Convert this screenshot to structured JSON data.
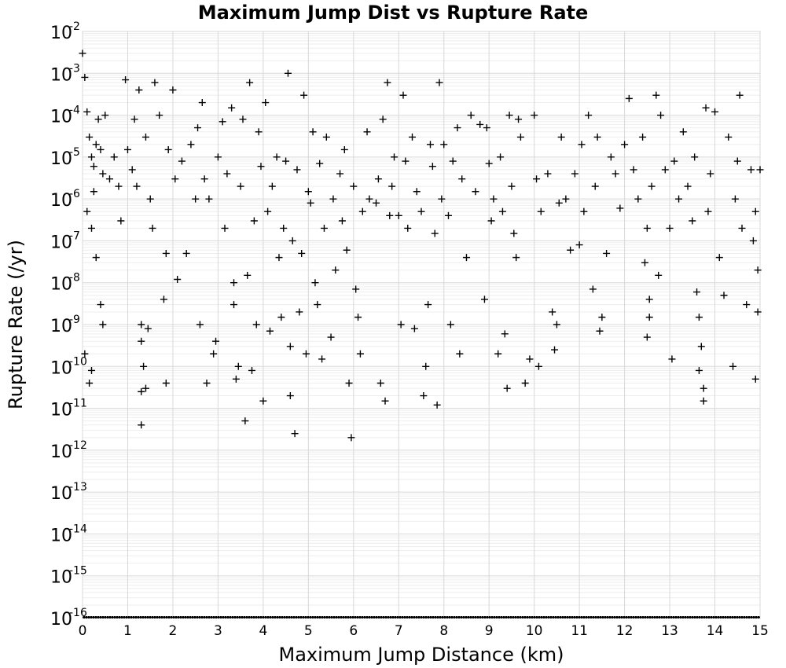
{
  "chart_data": {
    "type": "scatter",
    "title": "Maximum Jump Dist vs Rupture Rate",
    "xlabel": "Maximum Jump Distance (km)",
    "ylabel": "Rupture Rate (/yr)",
    "xlim": [
      0,
      15
    ],
    "ylim": [
      1e-16,
      0.01
    ],
    "yscale": "log",
    "grid": true,
    "marker": "+",
    "marker_color": "#000000",
    "x_ticks": [
      "0",
      "1",
      "2",
      "3",
      "4",
      "5",
      "6",
      "7",
      "8",
      "9",
      "10",
      "11",
      "12",
      "13",
      "14",
      "15"
    ],
    "y_ticks": [
      {
        "base": "10",
        "exp": "-16"
      },
      {
        "base": "10",
        "exp": "-15"
      },
      {
        "base": "10",
        "exp": "-14"
      },
      {
        "base": "10",
        "exp": "-13"
      },
      {
        "base": "10",
        "exp": "-12"
      },
      {
        "base": "10",
        "exp": "-11"
      },
      {
        "base": "10",
        "exp": "-10"
      },
      {
        "base": "10",
        "exp": "-9"
      },
      {
        "base": "10",
        "exp": "-8"
      },
      {
        "base": "10",
        "exp": "-7"
      },
      {
        "base": "10",
        "exp": "-6"
      },
      {
        "base": "10",
        "exp": "-5"
      },
      {
        "base": "10",
        "exp": "-4"
      },
      {
        "base": "10",
        "exp": "-3"
      },
      {
        "base": "10",
        "exp": "-2"
      }
    ],
    "points": [
      [
        0.0,
        0.003
      ],
      [
        0.05,
        0.0008
      ],
      [
        0.1,
        0.00012
      ],
      [
        0.15,
        3e-05
      ],
      [
        0.2,
        1e-05
      ],
      [
        0.25,
        6e-06
      ],
      [
        0.3,
        2e-05
      ],
      [
        0.35,
        8e-05
      ],
      [
        0.4,
        1.5e-05
      ],
      [
        0.45,
        4e-06
      ],
      [
        0.5,
        0.0001
      ],
      [
        0.1,
        5e-07
      ],
      [
        0.2,
        2e-07
      ],
      [
        0.3,
        4e-08
      ],
      [
        0.4,
        3e-09
      ],
      [
        0.45,
        1e-09
      ],
      [
        0.2,
        8e-11
      ],
      [
        0.15,
        4e-11
      ],
      [
        0.05,
        2e-10
      ],
      [
        0.25,
        1.5e-06
      ],
      [
        0.6,
        3e-06
      ],
      [
        0.7,
        1e-05
      ],
      [
        0.8,
        2e-06
      ],
      [
        0.85,
        3e-07
      ],
      [
        0.95,
        0.0007
      ],
      [
        1.0,
        1.5e-05
      ],
      [
        1.1,
        5e-06
      ],
      [
        1.15,
        8e-05
      ],
      [
        1.2,
        2e-06
      ],
      [
        1.25,
        0.0004
      ],
      [
        1.3,
        1e-09
      ],
      [
        1.3,
        4e-10
      ],
      [
        1.35,
        1e-10
      ],
      [
        1.3,
        2.5e-11
      ],
      [
        1.3,
        4e-12
      ],
      [
        1.4,
        3e-11
      ],
      [
        1.45,
        8e-10
      ],
      [
        1.4,
        3e-05
      ],
      [
        1.5,
        1e-06
      ],
      [
        1.55,
        2e-07
      ],
      [
        1.6,
        0.0006
      ],
      [
        1.7,
        0.0001
      ],
      [
        1.8,
        4e-09
      ],
      [
        1.85,
        5e-08
      ],
      [
        1.9,
        1.5e-05
      ],
      [
        2.0,
        0.0004
      ],
      [
        2.05,
        3e-06
      ],
      [
        2.1,
        1.2e-08
      ],
      [
        1.85,
        4e-11
      ],
      [
        2.2,
        8e-06
      ],
      [
        2.3,
        5e-08
      ],
      [
        2.4,
        2e-05
      ],
      [
        2.5,
        1e-06
      ],
      [
        2.55,
        5e-05
      ],
      [
        2.6,
        1e-09
      ],
      [
        2.65,
        0.0002
      ],
      [
        2.7,
        3e-06
      ],
      [
        2.75,
        4e-11
      ],
      [
        2.8,
        1e-06
      ],
      [
        2.9,
        2e-10
      ],
      [
        2.95,
        4e-10
      ],
      [
        3.0,
        1e-05
      ],
      [
        3.1,
        7e-05
      ],
      [
        3.15,
        2e-07
      ],
      [
        3.2,
        4e-06
      ],
      [
        3.3,
        0.00015
      ],
      [
        3.35,
        3e-09
      ],
      [
        3.35,
        1e-08
      ],
      [
        3.4,
        5e-11
      ],
      [
        3.45,
        1e-10
      ],
      [
        3.5,
        2e-06
      ],
      [
        3.55,
        8e-05
      ],
      [
        3.6,
        5e-12
      ],
      [
        3.65,
        1.5e-08
      ],
      [
        3.7,
        0.0006
      ],
      [
        3.75,
        8e-11
      ],
      [
        3.8,
        3e-07
      ],
      [
        3.85,
        1e-09
      ],
      [
        3.9,
        4e-05
      ],
      [
        3.95,
        6e-06
      ],
      [
        4.0,
        1.5e-11
      ],
      [
        4.05,
        0.0002
      ],
      [
        4.1,
        5e-07
      ],
      [
        4.15,
        7e-10
      ],
      [
        4.2,
        2e-06
      ],
      [
        4.3,
        1e-05
      ],
      [
        4.35,
        4e-08
      ],
      [
        4.4,
        1.5e-09
      ],
      [
        4.45,
        2e-07
      ],
      [
        4.5,
        8e-06
      ],
      [
        4.55,
        0.001
      ],
      [
        4.6,
        2e-11
      ],
      [
        4.6,
        3e-10
      ],
      [
        4.65,
        1e-07
      ],
      [
        4.7,
        2.5e-12
      ],
      [
        4.75,
        5e-06
      ],
      [
        4.8,
        2e-09
      ],
      [
        4.85,
        5e-08
      ],
      [
        4.9,
        0.0003
      ],
      [
        4.95,
        2e-10
      ],
      [
        5.0,
        1.5e-06
      ],
      [
        5.05,
        8e-07
      ],
      [
        5.1,
        4e-05
      ],
      [
        5.15,
        1e-08
      ],
      [
        5.2,
        3e-09
      ],
      [
        5.25,
        7e-06
      ],
      [
        5.3,
        1.5e-10
      ],
      [
        5.35,
        2e-07
      ],
      [
        5.4,
        3e-05
      ],
      [
        5.5,
        5e-10
      ],
      [
        5.55,
        1e-06
      ],
      [
        5.6,
        2e-08
      ],
      [
        5.7,
        4e-06
      ],
      [
        5.75,
        3e-07
      ],
      [
        5.8,
        1.5e-05
      ],
      [
        5.85,
        6e-08
      ],
      [
        5.9,
        4e-11
      ],
      [
        5.95,
        2e-12
      ],
      [
        6.0,
        2e-06
      ],
      [
        6.05,
        7e-09
      ],
      [
        6.1,
        1.5e-09
      ],
      [
        6.15,
        2e-10
      ],
      [
        6.2,
        5e-07
      ],
      [
        6.3,
        4e-05
      ],
      [
        6.35,
        1e-06
      ],
      [
        6.5,
        8e-07
      ],
      [
        6.55,
        3e-06
      ],
      [
        6.6,
        4e-11
      ],
      [
        6.65,
        8e-05
      ],
      [
        6.7,
        1.5e-11
      ],
      [
        6.75,
        0.0006
      ],
      [
        6.8,
        4e-07
      ],
      [
        6.85,
        2e-06
      ],
      [
        6.9,
        1e-05
      ],
      [
        7.0,
        4e-07
      ],
      [
        7.05,
        1e-09
      ],
      [
        7.1,
        0.0003
      ],
      [
        7.15,
        8e-06
      ],
      [
        7.2,
        2e-07
      ],
      [
        7.3,
        3e-05
      ],
      [
        7.35,
        8e-10
      ],
      [
        7.4,
        1.5e-06
      ],
      [
        7.5,
        5e-07
      ],
      [
        7.55,
        2e-11
      ],
      [
        7.6,
        1e-10
      ],
      [
        7.65,
        3e-09
      ],
      [
        7.7,
        2e-05
      ],
      [
        7.75,
        6e-06
      ],
      [
        7.8,
        1.5e-07
      ],
      [
        7.85,
        1.2e-11
      ],
      [
        7.9,
        0.0006
      ],
      [
        7.95,
        1e-06
      ],
      [
        8.0,
        2e-05
      ],
      [
        8.1,
        4e-07
      ],
      [
        8.15,
        1e-09
      ],
      [
        8.2,
        8e-06
      ],
      [
        8.3,
        5e-05
      ],
      [
        8.35,
        2e-10
      ],
      [
        8.4,
        3e-06
      ],
      [
        8.5,
        4e-08
      ],
      [
        8.6,
        0.0001
      ],
      [
        8.7,
        1.5e-06
      ],
      [
        8.8,
        6e-05
      ],
      [
        8.9,
        4e-09
      ],
      [
        8.95,
        5e-05
      ],
      [
        9.0,
        7e-06
      ],
      [
        9.05,
        3e-07
      ],
      [
        9.1,
        1e-06
      ],
      [
        9.2,
        2e-10
      ],
      [
        9.25,
        1e-05
      ],
      [
        9.3,
        5e-07
      ],
      [
        9.35,
        6e-10
      ],
      [
        9.4,
        3e-11
      ],
      [
        9.45,
        0.0001
      ],
      [
        9.5,
        2e-06
      ],
      [
        9.55,
        1.5e-07
      ],
      [
        9.6,
        4e-08
      ],
      [
        9.65,
        8e-05
      ],
      [
        9.7,
        3e-05
      ],
      [
        9.8,
        4e-11
      ],
      [
        9.9,
        1.5e-10
      ],
      [
        10.0,
        0.0001
      ],
      [
        10.05,
        3e-06
      ],
      [
        10.1,
        1e-10
      ],
      [
        10.15,
        5e-07
      ],
      [
        10.3,
        4e-06
      ],
      [
        10.4,
        2e-09
      ],
      [
        10.45,
        2.5e-10
      ],
      [
        10.5,
        1e-09
      ],
      [
        10.55,
        8e-07
      ],
      [
        10.6,
        3e-05
      ],
      [
        10.7,
        1e-06
      ],
      [
        10.8,
        6e-08
      ],
      [
        10.9,
        4e-06
      ],
      [
        11.0,
        8e-08
      ],
      [
        11.05,
        2e-05
      ],
      [
        11.1,
        5e-07
      ],
      [
        11.2,
        0.0001
      ],
      [
        11.3,
        7e-09
      ],
      [
        11.35,
        2e-06
      ],
      [
        11.4,
        3e-05
      ],
      [
        11.45,
        7e-10
      ],
      [
        11.5,
        1.5e-09
      ],
      [
        11.6,
        5e-08
      ],
      [
        11.7,
        1e-05
      ],
      [
        11.8,
        4e-06
      ],
      [
        11.9,
        6e-07
      ],
      [
        12.0,
        2e-05
      ],
      [
        12.1,
        0.00025
      ],
      [
        12.2,
        5e-06
      ],
      [
        12.3,
        1e-06
      ],
      [
        12.4,
        3e-05
      ],
      [
        12.45,
        3e-08
      ],
      [
        12.5,
        2e-07
      ],
      [
        12.55,
        4e-09
      ],
      [
        12.5,
        5e-10
      ],
      [
        12.55,
        1.5e-09
      ],
      [
        12.6,
        2e-06
      ],
      [
        12.7,
        0.0003
      ],
      [
        12.75,
        1.5e-08
      ],
      [
        12.8,
        0.0001
      ],
      [
        12.9,
        5e-06
      ],
      [
        13.0,
        2e-07
      ],
      [
        13.05,
        1.5e-10
      ],
      [
        13.1,
        8e-06
      ],
      [
        13.2,
        1e-06
      ],
      [
        13.3,
        4e-05
      ],
      [
        13.4,
        2e-06
      ],
      [
        13.5,
        3e-07
      ],
      [
        13.55,
        1e-05
      ],
      [
        13.6,
        6e-09
      ],
      [
        13.65,
        1.5e-09
      ],
      [
        13.7,
        3e-10
      ],
      [
        13.65,
        8e-11
      ],
      [
        13.75,
        1.5e-11
      ],
      [
        13.75,
        3e-11
      ],
      [
        13.8,
        0.00015
      ],
      [
        13.85,
        5e-07
      ],
      [
        13.9,
        4e-06
      ],
      [
        14.0,
        0.00012
      ],
      [
        14.1,
        4e-08
      ],
      [
        14.2,
        5e-09
      ],
      [
        14.3,
        3e-05
      ],
      [
        14.4,
        1e-10
      ],
      [
        14.45,
        1e-06
      ],
      [
        14.5,
        8e-06
      ],
      [
        14.55,
        0.0003
      ],
      [
        14.6,
        2e-07
      ],
      [
        14.7,
        3e-09
      ],
      [
        14.8,
        5e-06
      ],
      [
        14.85,
        1e-07
      ],
      [
        14.9,
        5e-11
      ],
      [
        14.95,
        2e-09
      ],
      [
        15.0,
        5e-06
      ],
      [
        14.95,
        2e-08
      ],
      [
        14.9,
        5e-07
      ]
    ],
    "floor_points_y": 1e-16
  }
}
